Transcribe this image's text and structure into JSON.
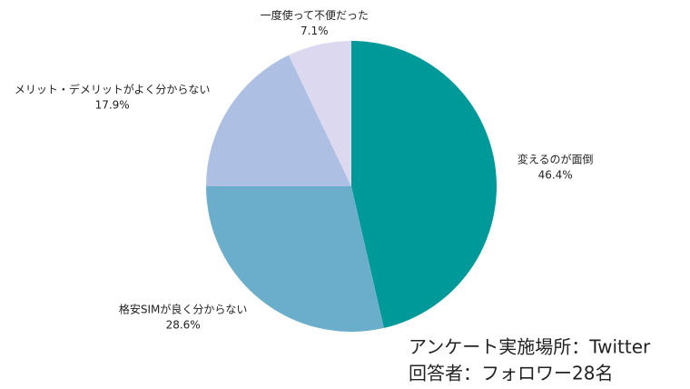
{
  "chart_data": {
    "type": "pie",
    "categories": [
      "変えるのが面倒",
      "格安SIMが良く分からない",
      "メリット・デメリットがよく分からない",
      "一度使って不便だった"
    ],
    "values": [
      46.4,
      28.6,
      17.9,
      7.1
    ],
    "value_labels": [
      "46.4%",
      "28.6%",
      "17.9%",
      "7.1%"
    ],
    "colors": [
      "#00999a",
      "#6aaecb",
      "#adc0e4",
      "#dcd8ef"
    ],
    "annotations": [
      "アンケート実施場所：Twitter",
      "回答者：フォロワー28名"
    ]
  }
}
